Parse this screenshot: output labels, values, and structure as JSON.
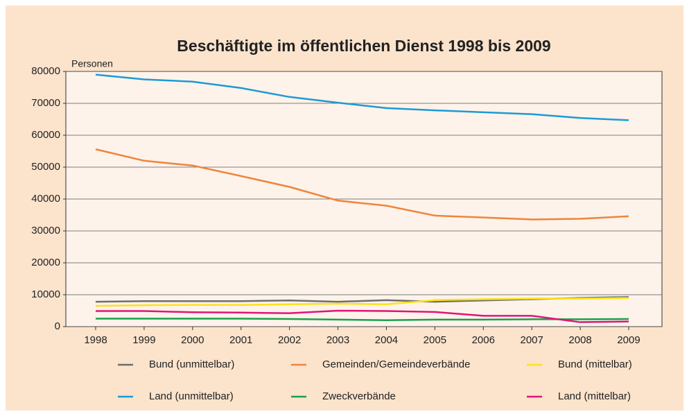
{
  "chart_data": {
    "type": "line",
    "title": "Beschäftigte im öffentlichen Dienst 1998 bis 2009",
    "y_label": "Personen",
    "x": [
      1998,
      1999,
      2000,
      2001,
      2002,
      2003,
      2004,
      2005,
      2006,
      2007,
      2008,
      2009
    ],
    "ylim": [
      0,
      80000
    ],
    "yticks": [
      0,
      10000,
      20000,
      30000,
      40000,
      50000,
      60000,
      70000,
      80000
    ],
    "grid": true,
    "series": [
      {
        "name": "Bund (unmittelbar)",
        "color": "#6d6d6d",
        "values": [
          7800,
          8000,
          8000,
          8000,
          8200,
          7800,
          8300,
          7800,
          8200,
          8600,
          9000,
          9300
        ]
      },
      {
        "name": "Gemeinden/Gemeindeverbände",
        "color": "#f0833a",
        "values": [
          55600,
          52000,
          50500,
          47200,
          43800,
          39500,
          37900,
          34800,
          34200,
          33600,
          33800,
          34600
        ]
      },
      {
        "name": "Bund (mittelbar)",
        "color": "#ffe11a",
        "values": [
          6500,
          6700,
          6800,
          6800,
          7000,
          7200,
          7000,
          8300,
          8600,
          8800,
          8800,
          9000
        ]
      },
      {
        "name": "Land (unmittelbar)",
        "color": "#1c9ad6",
        "values": [
          79000,
          77500,
          76800,
          74800,
          72000,
          70200,
          68500,
          67800,
          67200,
          66600,
          65400,
          64700
        ]
      },
      {
        "name": "Zweckverbände",
        "color": "#1aa04a",
        "values": [
          2500,
          2500,
          2500,
          2500,
          2400,
          2200,
          2000,
          2200,
          2200,
          2300,
          2300,
          2400
        ]
      },
      {
        "name": "Land (mittelbar)",
        "color": "#e0147a",
        "values": [
          4900,
          4900,
          4500,
          4400,
          4200,
          5000,
          4900,
          4600,
          3400,
          3400,
          1400,
          1600
        ]
      }
    ]
  }
}
